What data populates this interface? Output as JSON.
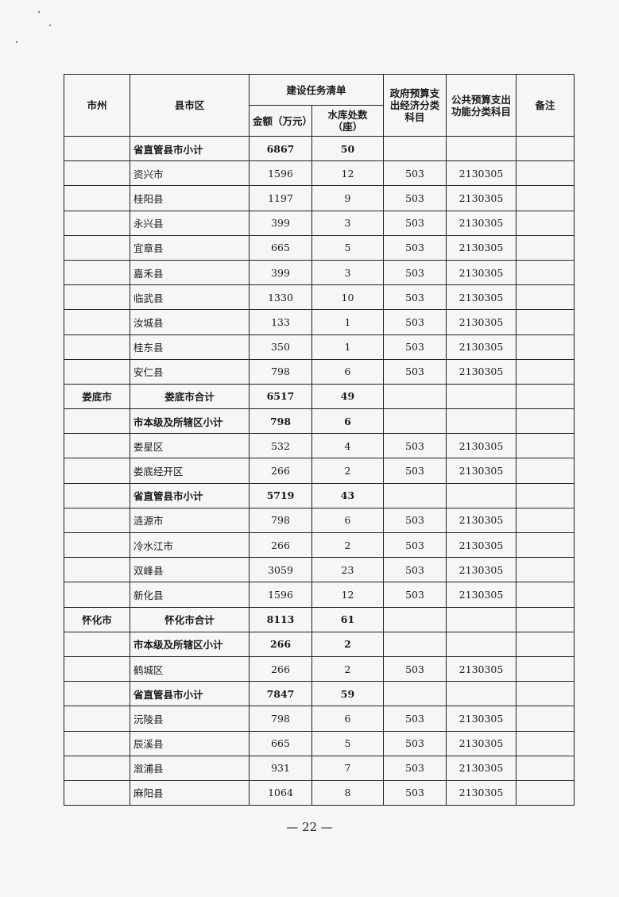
{
  "header": {
    "city": "市州",
    "county": "县市区",
    "task_list": "建设任务清单",
    "amount": "金额（万元）",
    "reservoirs": "水库处数（座）",
    "econ_class": "政府预算支出经济分类科目",
    "func_class": "公共预算支出功能分类科目",
    "remarks": "备注"
  },
  "rows": [
    {
      "city": "",
      "county": "省直管县市小计",
      "amount": "6867",
      "count": "50",
      "econ": "",
      "func": "",
      "type": "subtotal"
    },
    {
      "city": "",
      "county": "资兴市",
      "amount": "1596",
      "count": "12",
      "econ": "503",
      "func": "2130305",
      "type": "item"
    },
    {
      "city": "",
      "county": "桂阳县",
      "amount": "1197",
      "count": "9",
      "econ": "503",
      "func": "2130305",
      "type": "item"
    },
    {
      "city": "",
      "county": "永兴县",
      "amount": "399",
      "count": "3",
      "econ": "503",
      "func": "2130305",
      "type": "item"
    },
    {
      "city": "",
      "county": "宜章县",
      "amount": "665",
      "count": "5",
      "econ": "503",
      "func": "2130305",
      "type": "item"
    },
    {
      "city": "",
      "county": "嘉禾县",
      "amount": "399",
      "count": "3",
      "econ": "503",
      "func": "2130305",
      "type": "item"
    },
    {
      "city": "",
      "county": "临武县",
      "amount": "1330",
      "count": "10",
      "econ": "503",
      "func": "2130305",
      "type": "item"
    },
    {
      "city": "",
      "county": "汝城县",
      "amount": "133",
      "count": "1",
      "econ": "503",
      "func": "2130305",
      "type": "item"
    },
    {
      "city": "",
      "county": "桂东县",
      "amount": "350",
      "count": "1",
      "econ": "503",
      "func": "2130305",
      "type": "item"
    },
    {
      "city": "",
      "county": "安仁县",
      "amount": "798",
      "count": "6",
      "econ": "503",
      "func": "2130305",
      "type": "item"
    },
    {
      "city": "娄底市",
      "county": "娄底市合计",
      "amount": "6517",
      "count": "49",
      "econ": "",
      "func": "",
      "type": "total"
    },
    {
      "city": "",
      "county": "市本级及所辖区小计",
      "amount": "798",
      "count": "6",
      "econ": "",
      "func": "",
      "type": "subtotal"
    },
    {
      "city": "",
      "county": "娄星区",
      "amount": "532",
      "count": "4",
      "econ": "503",
      "func": "2130305",
      "type": "item"
    },
    {
      "city": "",
      "county": "娄底经开区",
      "amount": "266",
      "count": "2",
      "econ": "503",
      "func": "2130305",
      "type": "item"
    },
    {
      "city": "",
      "county": "省直管县市小计",
      "amount": "5719",
      "count": "43",
      "econ": "",
      "func": "",
      "type": "subtotal"
    },
    {
      "city": "",
      "county": "涟源市",
      "amount": "798",
      "count": "6",
      "econ": "503",
      "func": "2130305",
      "type": "item"
    },
    {
      "city": "",
      "county": "冷水江市",
      "amount": "266",
      "count": "2",
      "econ": "503",
      "func": "2130305",
      "type": "item"
    },
    {
      "city": "",
      "county": "双峰县",
      "amount": "3059",
      "count": "23",
      "econ": "503",
      "func": "2130305",
      "type": "item"
    },
    {
      "city": "",
      "county": "新化县",
      "amount": "1596",
      "count": "12",
      "econ": "503",
      "func": "2130305",
      "type": "item"
    },
    {
      "city": "怀化市",
      "county": "怀化市合计",
      "amount": "8113",
      "count": "61",
      "econ": "",
      "func": "",
      "type": "total"
    },
    {
      "city": "",
      "county": "市本级及所辖区小计",
      "amount": "266",
      "count": "2",
      "econ": "",
      "func": "",
      "type": "subtotal"
    },
    {
      "city": "",
      "county": "鹤城区",
      "amount": "266",
      "count": "2",
      "econ": "503",
      "func": "2130305",
      "type": "item"
    },
    {
      "city": "",
      "county": "省直管县市小计",
      "amount": "7847",
      "count": "59",
      "econ": "",
      "func": "",
      "type": "subtotal"
    },
    {
      "city": "",
      "county": "沅陵县",
      "amount": "798",
      "count": "6",
      "econ": "503",
      "func": "2130305",
      "type": "item"
    },
    {
      "city": "",
      "county": "辰溪县",
      "amount": "665",
      "count": "5",
      "econ": "503",
      "func": "2130305",
      "type": "item"
    },
    {
      "city": "",
      "county": "溆浦县",
      "amount": "931",
      "count": "7",
      "econ": "503",
      "func": "2130305",
      "type": "item"
    },
    {
      "city": "",
      "county": "麻阳县",
      "amount": "1064",
      "count": "8",
      "econ": "503",
      "func": "2130305",
      "type": "item"
    }
  ],
  "page_number": "— 22 —"
}
